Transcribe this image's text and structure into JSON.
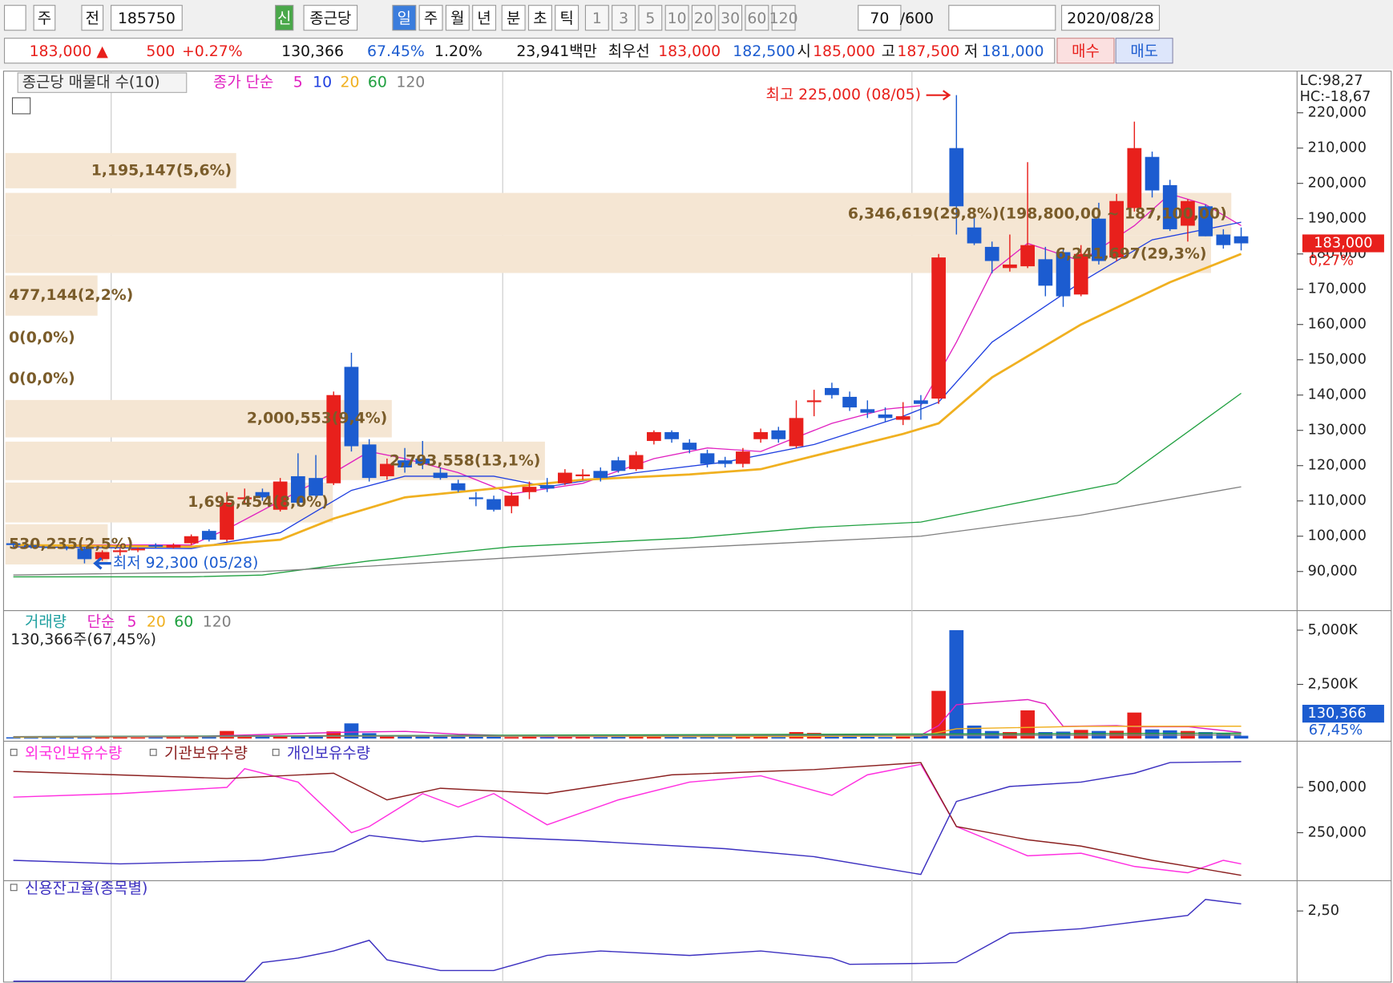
{
  "toolbar": {
    "items": [
      "주",
      "전",
      "185750",
      "신",
      "종근당",
      "일",
      "주",
      "월",
      "년",
      "분",
      "초",
      "틱",
      "1",
      "3",
      "5",
      "10",
      "20",
      "30",
      "60",
      "120",
      "70",
      "/600",
      "2020/08/28"
    ]
  },
  "quote": {
    "items": [
      "183,000 ▲",
      "500",
      "+0.27%",
      "130,366",
      "67.45%",
      "1.20%",
      "23,941백만",
      "최우선",
      "183,000",
      "182,500",
      "시",
      "185,000",
      "고",
      "187,500",
      "저",
      "181,000",
      "매수",
      "매도"
    ]
  },
  "chart_data": [
    {
      "type": "candlestick",
      "legend_title": "종근당 매물대 수(10)",
      "ma_label": "종가 단순",
      "open": [
        98000,
        97500,
        97000,
        96800,
        96500,
        93500,
        95500,
        96000,
        97500,
        96800,
        98000,
        101500,
        99000,
        110500,
        112500,
        107500,
        117000,
        116500,
        115000,
        148000,
        126000,
        117000,
        121500,
        122000,
        118000,
        115000,
        111000,
        110500,
        108500,
        112500,
        114500,
        115000,
        117000,
        118500,
        121500,
        119000,
        127000,
        129500,
        126500,
        123500,
        121500,
        120500,
        127500,
        130000,
        125500,
        138000,
        142000,
        139500,
        136000,
        134500,
        133000,
        138500,
        139000,
        210000,
        187500,
        182000,
        176000,
        176500,
        178500,
        180500,
        168500,
        190000,
        179000,
        193000,
        207500,
        199500,
        188000,
        193500,
        185500,
        185000
      ],
      "high": [
        98500,
        98000,
        97500,
        97200,
        97000,
        96000,
        96500,
        96800,
        98000,
        98000,
        100500,
        102000,
        112500,
        113500,
        113500,
        116500,
        123500,
        123000,
        141000,
        152000,
        127500,
        122000,
        125000,
        127000,
        119500,
        116000,
        112500,
        111500,
        112500,
        115500,
        116500,
        119000,
        119000,
        119500,
        122500,
        124000,
        130000,
        130000,
        127500,
        124500,
        122500,
        125000,
        130500,
        131000,
        138500,
        141500,
        143500,
        141000,
        138500,
        136500,
        138000,
        140000,
        180000,
        225000,
        190500,
        183500,
        185500,
        206000,
        182000,
        181500,
        182500,
        194500,
        197000,
        217500,
        209000,
        201000,
        195500,
        194000,
        187000,
        187500
      ],
      "low": [
        97000,
        96500,
        96500,
        96000,
        92300,
        93000,
        94500,
        95500,
        96500,
        96500,
        97500,
        98500,
        98500,
        109500,
        110000,
        107000,
        108500,
        111000,
        114500,
        124000,
        115500,
        116000,
        118000,
        119000,
        116000,
        112500,
        108500,
        107000,
        106500,
        110500,
        112500,
        114500,
        116000,
        115500,
        118000,
        118500,
        126000,
        126500,
        123500,
        119500,
        119500,
        119500,
        126500,
        126500,
        125000,
        134000,
        139000,
        135500,
        133500,
        132500,
        131500,
        133000,
        137500,
        185500,
        182500,
        174500,
        175000,
        176000,
        168000,
        165000,
        168000,
        177000,
        178000,
        192000,
        196000,
        186500,
        183500,
        185000,
        181500,
        181000
      ],
      "close": [
        97500,
        97000,
        96800,
        96500,
        93500,
        95500,
        96000,
        96500,
        97000,
        97500,
        100000,
        99000,
        109500,
        111000,
        111000,
        115500,
        109500,
        111500,
        140000,
        125500,
        116500,
        120500,
        119500,
        120500,
        116500,
        113000,
        110500,
        107500,
        111500,
        114000,
        113500,
        118000,
        117500,
        116500,
        118500,
        123000,
        129500,
        127500,
        124500,
        120500,
        120500,
        124000,
        129500,
        127500,
        133500,
        138500,
        140000,
        136500,
        135000,
        133500,
        134000,
        137500,
        179000,
        193500,
        183000,
        178000,
        177000,
        182500,
        171000,
        168000,
        180000,
        178000,
        195000,
        210000,
        198000,
        187000,
        195000,
        185000,
        182500,
        183000
      ],
      "up_color": "#e8201c",
      "down_color": "#1c5cd0",
      "ylim": [
        79170,
        231810
      ],
      "yticks": [
        {
          "value": 90000,
          "label": "90,000"
        },
        {
          "value": 100000,
          "label": "100,000"
        },
        {
          "value": 110000,
          "label": "110,000"
        },
        {
          "value": 120000,
          "label": "120,000"
        },
        {
          "value": 130000,
          "label": "130,000"
        },
        {
          "value": 140000,
          "label": "140,000"
        },
        {
          "value": 150000,
          "label": "150,000"
        },
        {
          "value": 160000,
          "label": "160,000"
        },
        {
          "value": 170000,
          "label": "170,000"
        },
        {
          "value": 180000,
          "label": "180,000"
        },
        {
          "value": 190000,
          "label": "190,000"
        },
        {
          "value": 200000,
          "label": "200,000"
        },
        {
          "value": 210000,
          "label": "210,000"
        },
        {
          "value": 220000,
          "label": "220,000"
        }
      ],
      "series": [
        {
          "name": "5",
          "color": "#e020c0",
          "x": [
            0,
            10,
            12,
            15,
            18,
            20,
            22,
            25,
            28,
            32,
            36,
            39,
            42,
            46,
            49,
            51,
            53,
            55,
            57,
            60,
            63,
            65,
            67,
            69
          ],
          "values": [
            97500,
            97500,
            102000,
            110000,
            118000,
            124000,
            122000,
            118000,
            112000,
            115000,
            122000,
            125000,
            124000,
            132000,
            136000,
            137000,
            155000,
            175000,
            183000,
            178000,
            188000,
            197000,
            194000,
            188000
          ]
        },
        {
          "name": "10",
          "color": "#2040e0",
          "x": [
            0,
            10,
            15,
            19,
            22,
            27,
            30,
            35,
            40,
            45,
            50,
            52,
            55,
            60,
            64,
            69
          ],
          "values": [
            97000,
            96500,
            101000,
            113000,
            117000,
            117000,
            114000,
            118000,
            121000,
            126000,
            134000,
            138000,
            155000,
            172000,
            184000,
            189000
          ]
        },
        {
          "name": "20",
          "color": "#f0b020",
          "x": [
            0,
            10,
            15,
            18,
            22,
            28,
            32,
            38,
            42,
            46,
            50,
            52,
            55,
            60,
            65,
            69
          ],
          "values": [
            97500,
            97000,
            99000,
            105000,
            111000,
            114000,
            116000,
            117500,
            119000,
            124000,
            129000,
            132000,
            145000,
            160000,
            172000,
            180000
          ]
        },
        {
          "name": "60",
          "color": "#20a040",
          "x": [
            0,
            10,
            14,
            20,
            28,
            38,
            45,
            51,
            55,
            62,
            69
          ],
          "values": [
            88500,
            88500,
            89000,
            93000,
            97000,
            99500,
            102500,
            104000,
            108000,
            115000,
            140500
          ]
        },
        {
          "name": "120",
          "color": "#808080",
          "x": [
            0,
            14,
            20,
            35,
            51,
            60,
            69
          ],
          "values": [
            89000,
            90000,
            91500,
            96000,
            100000,
            106000,
            114000
          ]
        }
      ],
      "volume_profile": {
        "color": "#f5e6d3",
        "text_color": "#7a5c2a",
        "bands": [
          {
            "low": 198600,
            "high": 208600,
            "value": 1195147,
            "label": "1,195,147(5,6%)"
          },
          {
            "low": 185200,
            "high": 197300,
            "value": 6346619,
            "label": "6,346,619(29,8%)(198,800,00 ~ 187,100,00)"
          },
          {
            "low": 174600,
            "high": 185200,
            "value": 6241697,
            "label": "6,241,697(29,3%)"
          },
          {
            "low": 162500,
            "high": 173900,
            "value": 477144,
            "label": "477,144(2,2%)"
          },
          {
            "low": 150500,
            "high": 161800,
            "value": 0,
            "label": "0(0,0%)"
          },
          {
            "low": 139100,
            "high": 150000,
            "value": 0,
            "label": "0(0,0%)"
          },
          {
            "low": 128000,
            "high": 138600,
            "value": 2000553,
            "label": "2,000,553(9,4%)"
          },
          {
            "low": 115900,
            "high": 126800,
            "value": 2793558,
            "label": "2,793,558(13,1%)"
          },
          {
            "low": 103900,
            "high": 115200,
            "value": 1695454,
            "label": "1,695,454(8,0%)"
          },
          {
            "low": 92000,
            "high": 103400,
            "value": 530235,
            "label": "530,235(2,5%)"
          }
        ]
      },
      "annotations": [
        {
          "text": "최고 225,000 (08/05)",
          "value": 225000,
          "color": "#e8201c"
        },
        {
          "text": "최저 92,300 (05/28)",
          "value": 92300,
          "color": "#1c5cd0"
        }
      ],
      "indicators": [
        "LC:98,27",
        "HC:-18,67"
      ],
      "price_tag": {
        "value": 183000,
        "label": "183,000"
      },
      "change_tag": {
        "value": 0.27,
        "label": "0,27%"
      }
    },
    {
      "type": "bar",
      "title": "거래량",
      "ma_label": "단순",
      "subtitle": "130,366주(67,45%)",
      "values": [
        60,
        50,
        50,
        60,
        80,
        70,
        60,
        50,
        60,
        70,
        90,
        80,
        350,
        100,
        80,
        120,
        150,
        120,
        330,
        700,
        250,
        150,
        140,
        120,
        100,
        90,
        80,
        80,
        70,
        80,
        70,
        90,
        80,
        70,
        90,
        80,
        100,
        80,
        70,
        70,
        60,
        80,
        90,
        70,
        300,
        260,
        120,
        90,
        80,
        70,
        90,
        120,
        2200,
        5000,
        600,
        350,
        300,
        1300,
        300,
        320,
        400,
        350,
        360,
        1200,
        420,
        380,
        350,
        300,
        250,
        130.366
      ],
      "ylim": [
        0,
        5780
      ],
      "yticks": [
        {
          "value": 2500,
          "label": "2,500K"
        },
        {
          "value": 5000,
          "label": "5,000K"
        }
      ],
      "series": [
        {
          "name": "5",
          "color": "#e020c0",
          "x": [
            0,
            10,
            12,
            19,
            22,
            25,
            30,
            44,
            46,
            50,
            51,
            52,
            53,
            55,
            57,
            58,
            59,
            62,
            63,
            66,
            69
          ],
          "values": [
            70,
            80,
            140,
            300,
            330,
            200,
            85,
            150,
            170,
            140,
            160,
            600,
            1560,
            1680,
            1800,
            1600,
            560,
            600,
            540,
            550,
            280
          ]
        },
        {
          "name": "20",
          "color": "#f0b020",
          "x": [
            0,
            20,
            40,
            51,
            53,
            60,
            69
          ],
          "values": [
            60,
            120,
            90,
            120,
            450,
            560,
            570
          ]
        },
        {
          "name": "60",
          "color": "#20a040",
          "x": [
            0,
            69
          ],
          "values": [
            90,
            250
          ]
        },
        {
          "name": "120",
          "color": "#808080",
          "x": [
            0,
            69
          ],
          "values": [
            90,
            170
          ]
        }
      ],
      "tag": {
        "value": 130.366,
        "label": "130,366"
      },
      "tag_sub": "67,45%"
    },
    {
      "type": "line",
      "ylim": [
        -10000,
        725000
      ],
      "yticks": [
        {
          "value": 250000,
          "label": "250,000"
        },
        {
          "value": 500000,
          "label": "500,000"
        }
      ],
      "series": [
        {
          "name": "외국인보유수량",
          "color": "#ff30e0",
          "x": [
            0,
            6,
            12,
            13,
            16,
            19,
            20,
            23,
            25,
            27,
            30,
            34,
            38,
            42,
            46,
            48,
            51,
            53,
            57,
            60,
            63,
            66,
            68,
            69
          ],
          "values": [
            446000,
            466000,
            500000,
            603000,
            529000,
            250000,
            284000,
            466000,
            392000,
            466000,
            294000,
            431000,
            529000,
            564000,
            456000,
            569000,
            627000,
            284000,
            123000,
            137000,
            64000,
            29000,
            98000,
            78000
          ]
        },
        {
          "name": "기관보유수량",
          "color": "#8b2020",
          "x": [
            0,
            12,
            18,
            21,
            24,
            30,
            37,
            45,
            51,
            53,
            57,
            60,
            64,
            67,
            69
          ],
          "values": [
            588000,
            549000,
            578000,
            431000,
            495000,
            466000,
            569000,
            598000,
            637000,
            284000,
            211000,
            176000,
            98000,
            49000,
            15000
          ]
        },
        {
          "name": "개인보유수량",
          "color": "#3c30c0",
          "x": [
            0,
            6,
            14,
            18,
            20,
            23,
            26,
            32,
            40,
            45,
            51,
            53,
            56,
            60,
            63,
            65,
            69
          ],
          "values": [
            98000,
            78000,
            98000,
            147000,
            235000,
            201000,
            230000,
            206000,
            162000,
            118000,
            20000,
            422000,
            505000,
            529000,
            578000,
            637000,
            642000
          ]
        }
      ]
    },
    {
      "type": "line",
      "ylim": [
        1.69,
        2.83
      ],
      "yticks": [
        {
          "value": 2.5,
          "label": "2,50"
        }
      ],
      "series": [
        {
          "name": "신용잔고율(종목별)",
          "color": "#3c30c0",
          "x": [
            0,
            13,
            14,
            16,
            18,
            20,
            21,
            24,
            27,
            30,
            33,
            38,
            42,
            46,
            47,
            51,
            53,
            56,
            60,
            64,
            66,
            67,
            69
          ],
          "values": [
            1.71,
            1.71,
            1.92,
            1.97,
            2.05,
            2.17,
            1.95,
            1.83,
            1.83,
            2.0,
            2.05,
            2.0,
            2.05,
            1.97,
            1.9,
            1.91,
            1.92,
            2.25,
            2.3,
            2.4,
            2.45,
            2.63,
            2.58
          ]
        }
      ]
    }
  ]
}
